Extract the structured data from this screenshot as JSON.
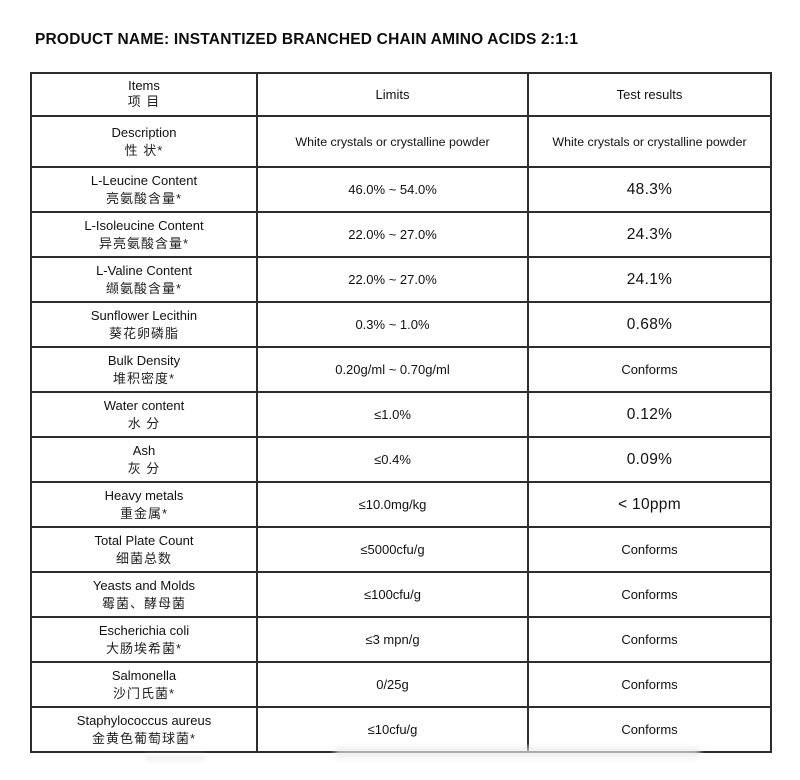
{
  "page": {
    "title": "PRODUCT NAME: INSTANTIZED BRANCHED CHAIN AMINO ACIDS 2:1:1"
  },
  "colors": {
    "background": "#ffffff",
    "text": "#111111",
    "border": "#2d2d2d"
  },
  "table": {
    "headers": {
      "items_en": "Items",
      "items_zh": "项 目",
      "limits": "Limits",
      "test_results": "Test results"
    },
    "rows": [
      {
        "item_en": "Description",
        "item_zh": "性 状*",
        "limit": "White crystals or crystalline powder",
        "result": "White crystals or crystalline powder"
      },
      {
        "item_en": "L-Leucine Content",
        "item_zh": "亮氨酸含量*",
        "limit": "46.0% ~ 54.0%",
        "result": "48.3%"
      },
      {
        "item_en": "L-Isoleucine Content",
        "item_zh": "异亮氨酸含量*",
        "limit": "22.0% ~ 27.0%",
        "result": "24.3%"
      },
      {
        "item_en": "L-Valine Content",
        "item_zh": "缬氨酸含量*",
        "limit": "22.0% ~ 27.0%",
        "result": "24.1%"
      },
      {
        "item_en": "Sunflower Lecithin",
        "item_zh": "葵花卵磷脂",
        "limit": "0.3% ~ 1.0%",
        "result": "0.68%"
      },
      {
        "item_en": "Bulk Density",
        "item_zh": "堆积密度*",
        "limit": "0.20g/ml ~ 0.70g/ml",
        "result": "Conforms"
      },
      {
        "item_en": "Water content",
        "item_zh": "水 分",
        "limit": "≤1.0%",
        "result": "0.12%"
      },
      {
        "item_en": "Ash",
        "item_zh": "灰 分",
        "limit": "≤0.4%",
        "result": "0.09%"
      },
      {
        "item_en": "Heavy metals",
        "item_zh": "重金属*",
        "limit": "≤10.0mg/kg",
        "result": "< 10ppm"
      },
      {
        "item_en": "Total Plate Count",
        "item_zh": "细菌总数",
        "limit": "≤5000cfu/g",
        "result": "Conforms"
      },
      {
        "item_en": "Yeasts and Molds",
        "item_zh": "霉菌、酵母菌",
        "limit": "≤100cfu/g",
        "result": "Conforms"
      },
      {
        "item_en": "Escherichia coli",
        "item_zh": "大肠埃希菌*",
        "limit": "≤3 mpn/g",
        "result": "Conforms"
      },
      {
        "item_en": "Salmonella",
        "item_zh": "沙门氏菌*",
        "limit": "0/25g",
        "result": "Conforms"
      },
      {
        "item_en": "Staphylococcus aureus",
        "item_zh": "金黄色葡萄球菌*",
        "limit": "≤10cfu/g",
        "result": "Conforms"
      }
    ]
  }
}
